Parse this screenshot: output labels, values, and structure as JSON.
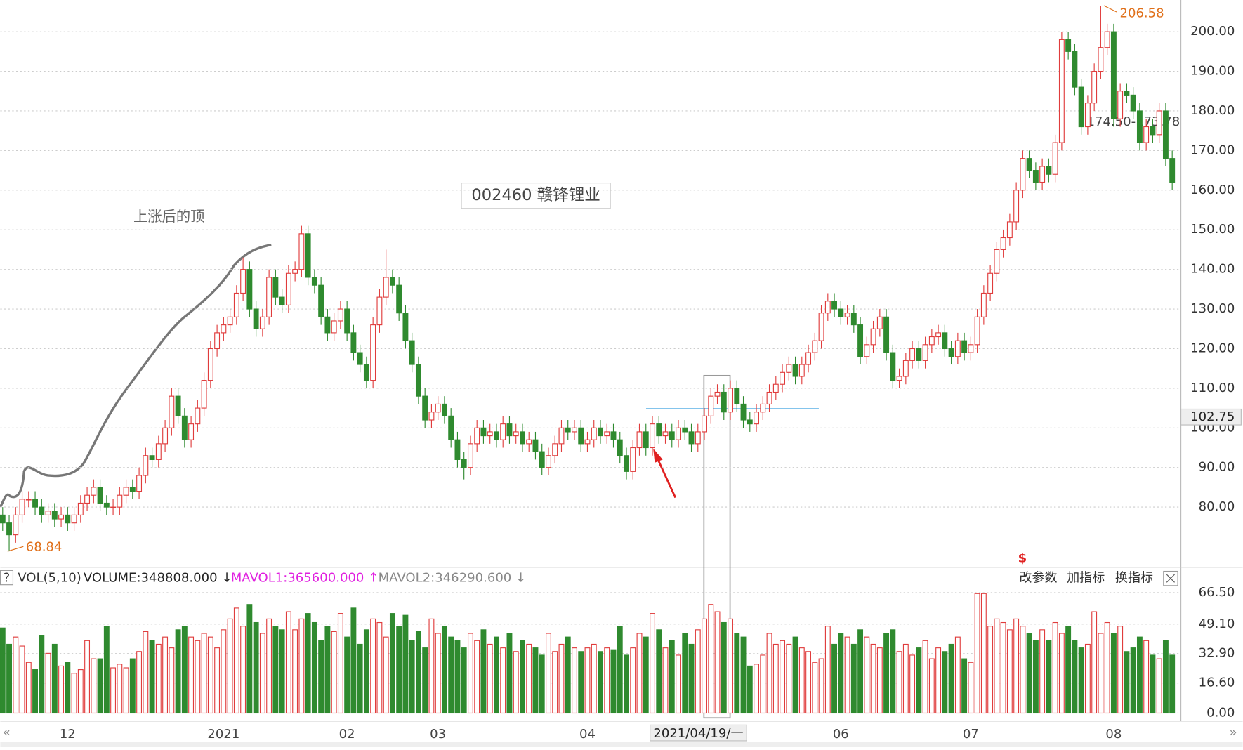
{
  "chart_data": {
    "type": "candlestick",
    "title": "002460 赣锋锂业",
    "annotation": "上涨后的顶",
    "categories": [
      null,
      null,
      null,
      null,
      null,
      null,
      null,
      null,
      null,
      null,
      "12",
      null,
      null,
      null,
      null,
      null,
      null,
      null,
      null,
      null,
      null,
      null,
      null,
      null,
      null,
      null,
      null,
      null,
      null,
      null,
      null,
      null,
      null,
      null,
      "2021",
      null,
      null,
      null,
      null,
      null,
      null,
      null,
      null,
      null,
      null,
      null,
      null,
      null,
      null,
      null,
      null,
      null,
      null,
      "02",
      null,
      null,
      null,
      null,
      null,
      null,
      null,
      null,
      null,
      null,
      null,
      null,
      null,
      "03",
      null,
      null,
      null,
      null,
      null,
      null,
      null,
      null,
      null,
      null,
      null,
      null,
      null,
      null,
      null,
      null,
      null,
      null,
      null,
      null,
      null,
      null,
      "04",
      null,
      null,
      null,
      null,
      null,
      null,
      null,
      null,
      null,
      null,
      null,
      null,
      null,
      null,
      null,
      null,
      null,
      null,
      null,
      null,
      null,
      null,
      null,
      null,
      null,
      null,
      null,
      null,
      null,
      null,
      null,
      null,
      null,
      null,
      null,
      null,
      null,
      null,
      "06",
      null,
      null,
      null,
      null,
      null,
      null,
      null,
      null,
      null,
      null,
      null,
      null,
      null,
      null,
      null,
      null,
      null,
      null,
      null,
      "07",
      null,
      null,
      null,
      null,
      null,
      null,
      null,
      null,
      null,
      null,
      null,
      null,
      null,
      null,
      null,
      null,
      null,
      null,
      null,
      null,
      null,
      "08",
      null,
      null,
      null,
      null,
      null,
      null,
      null,
      null,
      null
    ],
    "open": [
      78,
      76,
      73,
      78,
      82,
      82,
      80,
      78,
      79,
      77,
      78,
      76,
      78,
      81,
      83,
      85,
      81,
      80,
      80,
      83,
      85,
      84,
      88,
      93,
      92,
      96,
      100,
      108,
      103,
      97,
      101,
      105,
      112,
      120,
      124,
      126,
      128,
      134,
      140,
      130,
      125,
      128,
      138,
      133,
      131,
      139,
      140,
      149,
      138,
      136,
      128,
      124,
      127,
      130,
      124,
      119,
      116,
      112,
      126,
      133,
      138,
      136,
      129,
      122,
      116,
      108,
      102,
      104,
      106,
      103,
      97,
      92,
      90,
      96,
      100,
      98,
      99,
      97,
      101,
      98,
      99,
      96,
      97,
      94,
      90,
      93,
      96,
      100,
      99,
      100,
      96,
      97,
      100,
      98,
      99,
      97,
      93,
      89,
      95,
      99,
      95,
      101,
      98,
      99,
      97,
      100,
      99,
      96,
      99,
      103,
      108,
      109,
      104,
      110,
      106,
      102,
      101,
      104,
      106,
      109,
      111,
      114,
      116,
      113,
      116,
      119,
      122,
      129,
      132,
      130,
      128,
      129,
      126,
      118,
      121,
      125,
      128,
      119,
      112,
      113,
      117,
      120,
      117,
      121,
      123,
      124,
      120,
      118,
      122,
      119,
      121,
      128,
      134,
      139,
      145,
      148,
      152,
      160,
      168,
      165,
      162,
      166,
      164,
      172,
      198,
      195,
      186,
      176,
      182,
      190,
      196,
      200,
      178,
      185,
      184,
      180,
      172,
      176,
      174,
      180,
      168
    ],
    "high": [
      80,
      78,
      80,
      84,
      84,
      84,
      82,
      81,
      81,
      80,
      80,
      80,
      83,
      85,
      87,
      87,
      83,
      82,
      85,
      87,
      87,
      90,
      95,
      95,
      98,
      102,
      110,
      110,
      105,
      103,
      107,
      114,
      122,
      126,
      128,
      130,
      136,
      143,
      142,
      132,
      130,
      140,
      140,
      135,
      141,
      142,
      151,
      151,
      140,
      138,
      130,
      129,
      132,
      132,
      126,
      121,
      118,
      128,
      135,
      145,
      140,
      138,
      131,
      124,
      118,
      110,
      106,
      108,
      108,
      105,
      99,
      94,
      98,
      102,
      102,
      101,
      101,
      103,
      103,
      101,
      101,
      99,
      99,
      96,
      95,
      98,
      102,
      102,
      102,
      102,
      99,
      102,
      102,
      101,
      101,
      99,
      95,
      97,
      101,
      101,
      103,
      103,
      101,
      101,
      102,
      102,
      101,
      101,
      105,
      110,
      111,
      111,
      112,
      112,
      108,
      104,
      106,
      108,
      111,
      113,
      116,
      118,
      118,
      118,
      121,
      124,
      131,
      134,
      134,
      132,
      131,
      131,
      128,
      123,
      127,
      130,
      130,
      121,
      115,
      119,
      122,
      122,
      123,
      125,
      126,
      126,
      122,
      124,
      124,
      123,
      130,
      136,
      141,
      147,
      150,
      154,
      162,
      170,
      170,
      167,
      168,
      168,
      174,
      200,
      200,
      197,
      188,
      184,
      192,
      206.58,
      202,
      202,
      187,
      187,
      186,
      182,
      178,
      178,
      182,
      182,
      170
    ],
    "low": [
      74,
      68.84,
      71,
      76,
      80,
      78,
      76,
      76,
      75,
      75,
      74,
      74,
      76,
      79,
      81,
      79,
      78,
      78,
      78,
      81,
      82,
      82,
      86,
      90,
      90,
      94,
      98,
      101,
      95,
      95,
      99,
      103,
      110,
      118,
      122,
      124,
      126,
      132,
      128,
      123,
      123,
      126,
      131,
      129,
      129,
      137,
      138,
      136,
      134,
      126,
      122,
      122,
      125,
      122,
      117,
      114,
      110,
      110,
      124,
      131,
      134,
      127,
      120,
      114,
      106,
      100,
      100,
      102,
      101,
      95,
      90,
      87,
      88,
      94,
      96,
      96,
      95,
      95,
      96,
      96,
      94,
      94,
      92,
      88,
      88,
      91,
      94,
      97,
      97,
      94,
      94,
      95,
      96,
      96,
      95,
      91,
      87,
      87,
      93,
      93,
      93,
      96,
      96,
      95,
      95,
      97,
      94,
      94,
      97,
      101,
      106,
      102,
      102,
      104,
      100,
      99,
      99,
      102,
      104,
      107,
      109,
      112,
      111,
      111,
      114,
      117,
      120,
      127,
      128,
      126,
      126,
      124,
      116,
      116,
      119,
      123,
      117,
      110,
      110,
      111,
      115,
      115,
      115,
      119,
      121,
      118,
      116,
      116,
      117,
      117,
      119,
      126,
      132,
      137,
      143,
      146,
      150,
      158,
      163,
      160,
      160,
      162,
      162,
      170,
      193,
      184,
      174,
      174,
      180,
      188,
      194,
      176,
      176,
      182,
      178,
      170,
      170,
      172,
      172,
      166,
      160
    ],
    "close": [
      76,
      73,
      78,
      82,
      82,
      80,
      78,
      79,
      77,
      78,
      76,
      78,
      81,
      83,
      85,
      81,
      80,
      80,
      83,
      85,
      84,
      88,
      93,
      92,
      96,
      100,
      108,
      103,
      97,
      101,
      105,
      112,
      120,
      124,
      126,
      128,
      134,
      140,
      130,
      125,
      128,
      138,
      133,
      131,
      139,
      140,
      149,
      138,
      136,
      128,
      124,
      127,
      130,
      124,
      119,
      116,
      112,
      126,
      133,
      138,
      136,
      129,
      122,
      116,
      108,
      102,
      104,
      106,
      103,
      97,
      92,
      90,
      96,
      100,
      98,
      99,
      97,
      101,
      98,
      99,
      96,
      97,
      94,
      90,
      93,
      96,
      100,
      99,
      100,
      96,
      97,
      100,
      98,
      99,
      97,
      93,
      89,
      95,
      99,
      95,
      101,
      98,
      99,
      97,
      100,
      99,
      96,
      99,
      103,
      108,
      109,
      104,
      110,
      106,
      102,
      101,
      104,
      106,
      109,
      111,
      114,
      116,
      113,
      116,
      119,
      122,
      129,
      132,
      130,
      128,
      129,
      126,
      118,
      121,
      125,
      128,
      119,
      112,
      113,
      117,
      120,
      117,
      121,
      123,
      124,
      120,
      118,
      122,
      119,
      121,
      128,
      134,
      139,
      145,
      148,
      152,
      160,
      168,
      165,
      162,
      166,
      164,
      172,
      198,
      195,
      186,
      176,
      182,
      190,
      196,
      200,
      178,
      185,
      184,
      180,
      172,
      176,
      174,
      180,
      168,
      162
    ],
    "up_color": "#e03c3c",
    "down_color": "#2f8a2f",
    "ylim": [
      65,
      208
    ],
    "yticks": [
      {
        "value": 80,
        "label": "80.00"
      },
      {
        "value": 90,
        "label": "90.00"
      },
      {
        "value": 100,
        "label": "100.00"
      },
      {
        "value": 110,
        "label": "110.00"
      },
      {
        "value": 120,
        "label": "120.00"
      },
      {
        "value": 130,
        "label": "130.00"
      },
      {
        "value": 140,
        "label": "140.00"
      },
      {
        "value": 150,
        "label": "150.00"
      },
      {
        "value": 160,
        "label": "160.00"
      },
      {
        "value": 170,
        "label": "170.00"
      },
      {
        "value": 180,
        "label": "180.00"
      },
      {
        "value": 190,
        "label": "190.00"
      },
      {
        "value": 200,
        "label": "200.00"
      }
    ],
    "grid": true,
    "cursor_price": 102.75,
    "cursor_date": "2021/04/19/一",
    "range_label": "174.50-173.78",
    "marker": "$",
    "volume": {
      "name": "VOL(5,10)",
      "volume_label": "VOLUME:348808.000 ↓",
      "mavol1_label": "MAVOL1:365600.000 ↑",
      "mavol2_label": "MAVOL2:346290.600 ↓",
      "ylim": [
        0,
        70
      ],
      "yticks": [
        {
          "value": 0,
          "label": "0.00"
        },
        {
          "value": 16.6,
          "label": "16.60"
        },
        {
          "value": 32.9,
          "label": "32.90"
        },
        {
          "value": 49.1,
          "label": "49.10"
        },
        {
          "value": 66.5,
          "label": "66.50"
        }
      ],
      "values": [
        47,
        38,
        42,
        37,
        28,
        24,
        43,
        33,
        38,
        26,
        28,
        22,
        24,
        40,
        30,
        30,
        48,
        25,
        27,
        25,
        30,
        34,
        45,
        40,
        38,
        42,
        36,
        46,
        48,
        42,
        40,
        44,
        42,
        36,
        46,
        52,
        58,
        48,
        60,
        50,
        44,
        52,
        48,
        46,
        56,
        46,
        52,
        55,
        50,
        40,
        48,
        45,
        55,
        42,
        58,
        38,
        46,
        52,
        50,
        42,
        55,
        48,
        54,
        40,
        45,
        36,
        52,
        44,
        48,
        42,
        40,
        36,
        44,
        40,
        46,
        38,
        42,
        36,
        44,
        34,
        40,
        38,
        36,
        32,
        44,
        34,
        38,
        42,
        36,
        34,
        36,
        38,
        34,
        36,
        35,
        48,
        32,
        36,
        44,
        42,
        55,
        46,
        36,
        40,
        32,
        44,
        38,
        46,
        52,
        60,
        56,
        50,
        52,
        44,
        42,
        26,
        27,
        32,
        44,
        38,
        40,
        38,
        42,
        36,
        34,
        28,
        30,
        48,
        38,
        44,
        42,
        38,
        46,
        42,
        38,
        36,
        44,
        46,
        34,
        38,
        32,
        36,
        40,
        30,
        36,
        34,
        38,
        42,
        30,
        28,
        66,
        66,
        48,
        52,
        50,
        46,
        52,
        48,
        44,
        40,
        46,
        40,
        50,
        44,
        48,
        40,
        36,
        38,
        56,
        44,
        50,
        44,
        48,
        34,
        36,
        42,
        40,
        32,
        30,
        40,
        32
      ]
    }
  },
  "toolbar": [
    "改参数",
    "加指标",
    "换指标"
  ]
}
